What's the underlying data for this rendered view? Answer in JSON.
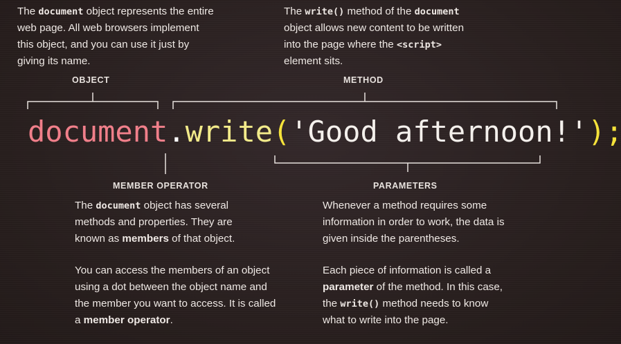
{
  "object_note": {
    "parts": [
      "The ",
      "document",
      " object represents the entire web page. All web browsers implement this object, and you can use it just by giving its name."
    ]
  },
  "method_note": {
    "parts": [
      "The ",
      "write()",
      " method of the ",
      "document",
      " object allows new content to be written into the page where the ",
      "<script>",
      " element sits."
    ]
  },
  "labels": {
    "object": "OBJECT",
    "method": "METHOD",
    "member_operator": "MEMBER OPERATOR",
    "parameters": "PARAMETERS"
  },
  "code": {
    "object": "document",
    "dot": ".",
    "method": "write",
    "open_paren": "(",
    "string": "'Good afternoon!'",
    "close_paren": ")",
    "semicolon": ";"
  },
  "member_note_1": {
    "parts": [
      "The ",
      "document",
      " object has several methods and properties. They are known as ",
      "members",
      " of that object."
    ]
  },
  "member_note_2": {
    "parts": [
      "You can access the members of an object using a dot between the object name and the member you want to access. It is called a ",
      "member operator",
      "."
    ]
  },
  "param_note_1": {
    "parts": [
      "Whenever a method requires some information in order to work, the data is given inside the parentheses."
    ]
  },
  "param_note_2": {
    "parts": [
      "Each piece of information is called a ",
      "parameter",
      " of the method. In this case, the ",
      "write()",
      " method needs to know what to write into the page."
    ]
  },
  "colors": {
    "background": "#2b2120",
    "object": "#f07f8a",
    "method": "#f2ea8a",
    "paren": "#f5e23a",
    "string": "#f4f0ec"
  }
}
